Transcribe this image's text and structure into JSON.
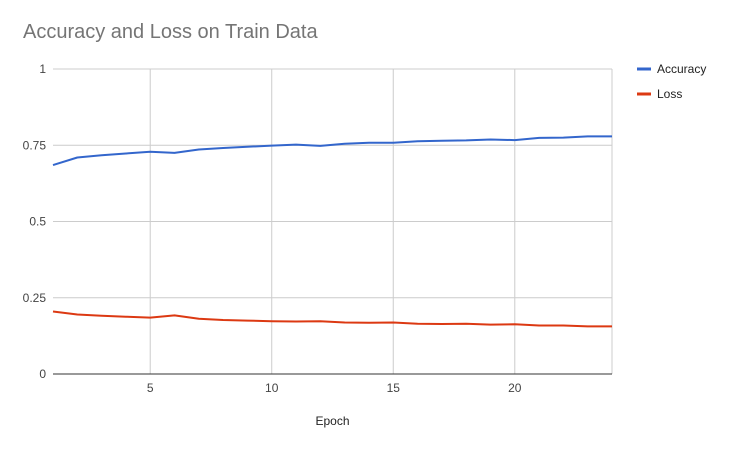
{
  "chart_data": {
    "type": "line",
    "title": "Accuracy and Loss on Train Data",
    "xlabel": "Epoch",
    "ylabel": "",
    "xlim": [
      1,
      24
    ],
    "ylim": [
      0,
      1
    ],
    "x_ticks": [
      5,
      10,
      15,
      20
    ],
    "y_ticks": [
      0,
      0.25,
      0.5,
      0.75,
      1
    ],
    "y_tick_labels": [
      "0",
      "0.25",
      "0.5",
      "0.75",
      "1"
    ],
    "grid": true,
    "legend_position": "right",
    "x": [
      1,
      2,
      3,
      4,
      5,
      6,
      7,
      8,
      9,
      10,
      11,
      12,
      13,
      14,
      15,
      16,
      17,
      18,
      19,
      20,
      21,
      22,
      23,
      24
    ],
    "series": [
      {
        "name": "Accuracy",
        "color": "#3366cc",
        "values": [
          0.685,
          0.71,
          0.717,
          0.723,
          0.729,
          0.725,
          0.736,
          0.741,
          0.745,
          0.749,
          0.752,
          0.748,
          0.755,
          0.758,
          0.758,
          0.763,
          0.765,
          0.766,
          0.769,
          0.767,
          0.774,
          0.775,
          0.779,
          0.779
        ]
      },
      {
        "name": "Loss",
        "color": "#dc3912",
        "values": [
          0.205,
          0.195,
          0.191,
          0.188,
          0.185,
          0.192,
          0.181,
          0.177,
          0.175,
          0.173,
          0.172,
          0.173,
          0.169,
          0.168,
          0.169,
          0.165,
          0.164,
          0.165,
          0.162,
          0.163,
          0.159,
          0.159,
          0.156,
          0.156
        ]
      }
    ]
  }
}
